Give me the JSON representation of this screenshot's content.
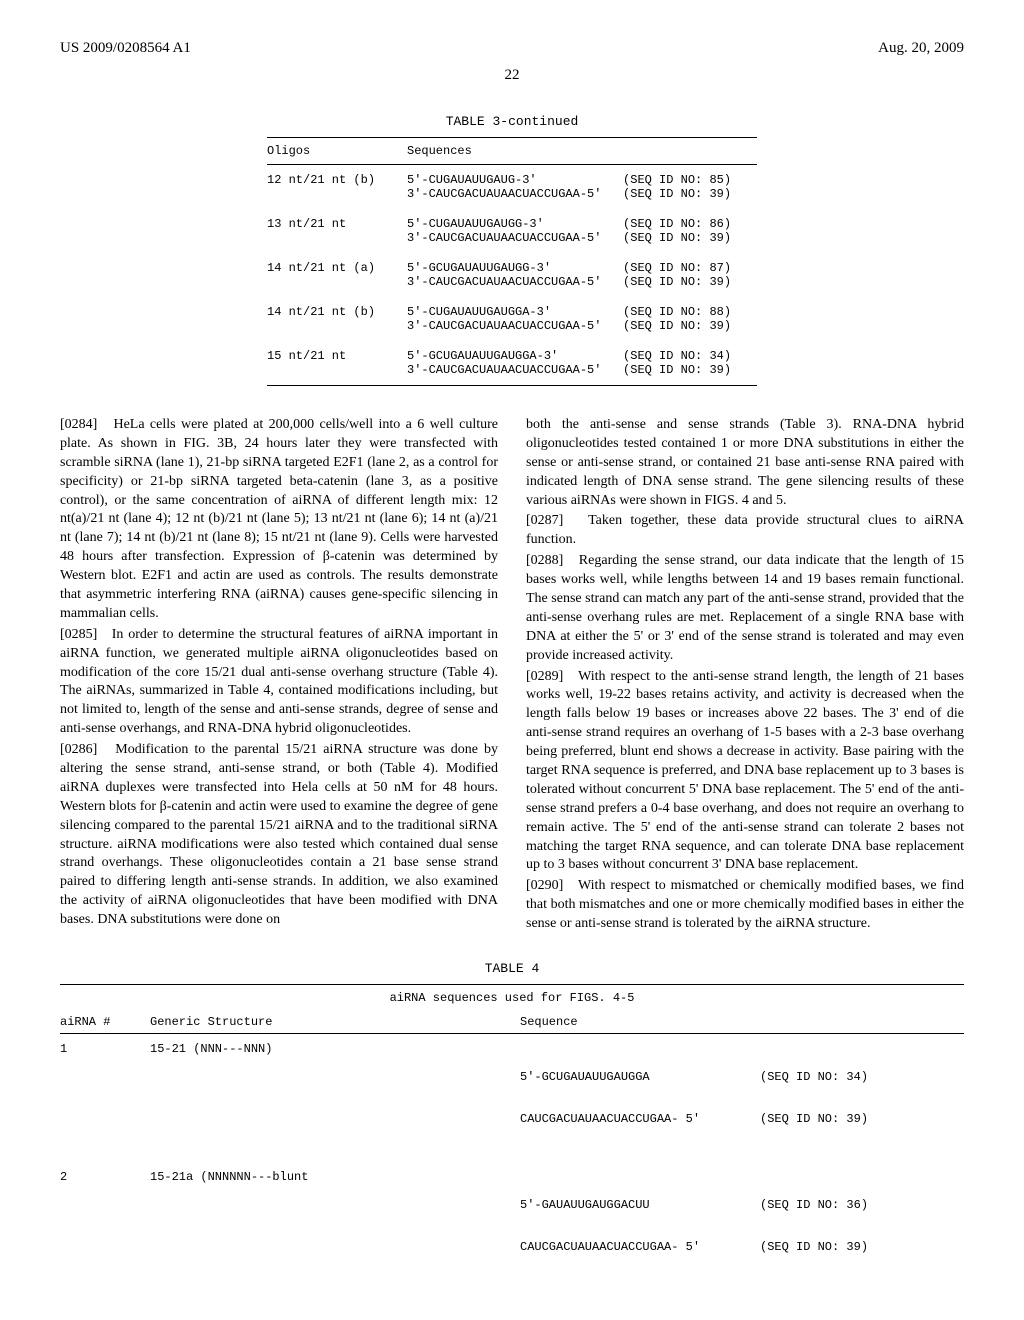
{
  "header": {
    "pub_no": "US 2009/0208564 A1",
    "date": "Aug. 20, 2009",
    "page": "22"
  },
  "table3": {
    "title": "TABLE 3-continued",
    "col_headers": [
      "Oligos",
      "Sequences"
    ],
    "rows": [
      {
        "oligo": "12 nt/21 nt (b)",
        "seq1": "5'-CUGAUAUUGAUG-3'",
        "seqid1": "(SEQ ID NO: 85)",
        "seq2": "3'-CAUCGACUAUAACUACCUGAA-5'",
        "seqid2": "(SEQ ID NO: 39)"
      },
      {
        "oligo": "13 nt/21 nt",
        "seq1": "5'-CUGAUAUUGAUGG-3'",
        "seqid1": "(SEQ ID NO: 86)",
        "seq2": "3'-CAUCGACUAUAACUACCUGAA-5'",
        "seqid2": "(SEQ ID NO: 39)"
      },
      {
        "oligo": "14 nt/21 nt (a)",
        "seq1": "5'-GCUGAUAUUGAUGG-3'",
        "seqid1": "(SEQ ID NO: 87)",
        "seq2": "3'-CAUCGACUAUAACUACCUGAA-5'",
        "seqid2": "(SEQ ID NO: 39)"
      },
      {
        "oligo": "14 nt/21 nt (b)",
        "seq1": "5'-CUGAUAUUGAUGGA-3'",
        "seqid1": "(SEQ ID NO: 88)",
        "seq2": "3'-CAUCGACUAUAACUACCUGAA-5'",
        "seqid2": "(SEQ ID NO: 39)"
      },
      {
        "oligo": "15 nt/21 nt",
        "seq1": "5'-GCUGAUAUUGAUGGA-3'",
        "seqid1": "(SEQ ID NO: 34)",
        "seq2": "3'-CAUCGACUAUAACUACCUGAA-5'",
        "seqid2": "(SEQ ID NO: 39)"
      }
    ]
  },
  "paragraphs": {
    "p0284": "HeLa cells were plated at 200,000 cells/well into a 6 well culture plate. As shown in FIG. 3B, 24 hours later they were transfected with scramble siRNA (lane 1), 21-bp siRNA targeted E2F1 (lane 2, as a control for specificity) or 21-bp siRNA targeted beta-catenin (lane 3, as a positive control), or the same concentration of aiRNA of different length mix: 12 nt(a)/21 nt (lane 4); 12 nt (b)/21 nt (lane 5); 13 nt/21 nt (lane 6); 14 nt (a)/21 nt (lane 7); 14 nt (b)/21 nt (lane 8); 15 nt/21 nt (lane 9). Cells were harvested 48 hours after transfection. Expression of β-catenin was determined by Western blot. E2F1 and actin are used as controls. The results demonstrate that asymmetric interfering RNA (aiRNA) causes gene-specific silencing in mammalian cells.",
    "p0285": "In order to determine the structural features of aiRNA important in aiRNA function, we generated multiple aiRNA oligonucleotides based on modification of the core 15/21 dual anti-sense overhang structure (Table 4). The aiRNAs, summarized in Table 4, contained modifications including, but not limited to, length of the sense and anti-sense strands, degree of sense and anti-sense overhangs, and RNA-DNA hybrid oligonucleotides.",
    "p0286": "Modification to the parental 15/21 aiRNA structure was done by altering the sense strand, anti-sense strand, or both (Table 4). Modified aiRNA duplexes were transfected into Hela cells at 50 nM for 48 hours. Western blots for β-catenin and actin were used to examine the degree of gene silencing compared to the parental 15/21 aiRNA and to the traditional siRNA structure. aiRNA modifications were also tested which contained dual sense strand overhangs. These oligonucleotides contain a 21 base sense strand paired to differing length anti-sense strands. In addition, we also examined the activity of aiRNA oligonucleotides that have been modified with DNA bases. DNA substitutions were done on",
    "p0286b": "both the anti-sense and sense strands (Table 3). RNA-DNA hybrid oligonucleotides tested contained 1 or more DNA substitutions in either the sense or anti-sense strand, or contained 21 base anti-sense RNA paired with indicated length of DNA sense strand. The gene silencing results of these various aiRNAs were shown in FIGS. 4 and 5.",
    "p0287": "Taken together, these data provide structural clues to aiRNA function.",
    "p0288": "Regarding the sense strand, our data indicate that the length of 15 bases works well, while lengths between 14 and 19 bases remain functional. The sense strand can match any part of the anti-sense strand, provided that the anti-sense overhang rules are met. Replacement of a single RNA base with DNA at either the 5' or 3' end of the sense strand is tolerated and may even provide increased activity.",
    "p0289": "With respect to the anti-sense strand length, the length of 21 bases works well, 19-22 bases retains activity, and activity is decreased when the length falls below 19 bases or increases above 22 bases. The 3' end of die anti-sense strand requires an overhang of 1-5 bases with a 2-3 base overhang being preferred, blunt end shows a decrease in activity. Base pairing with the target RNA sequence is preferred, and DNA base replacement up to 3 bases is tolerated without concurrent 5' DNA base replacement. The 5' end of the anti-sense strand prefers a 0-4 base overhang, and does not require an overhang to remain active. The 5' end of the anti-sense strand can tolerate 2 bases not matching the target RNA sequence, and can tolerate DNA base replacement up to 3 bases without concurrent 3' DNA base replacement.",
    "p0290": "With respect to mismatched or chemically modified bases, we find that both mismatches and one or more chemically modified bases in either the sense or anti-sense strand is tolerated by the aiRNA structure."
  },
  "para_nums": {
    "n0284": "[0284]",
    "n0285": "[0285]",
    "n0286": "[0286]",
    "n0287": "[0287]",
    "n0288": "[0288]",
    "n0289": "[0289]",
    "n0290": "[0290]"
  },
  "table4": {
    "title": "TABLE 4",
    "subtitle": "aiRNA sequences used for FIGS. 4-5",
    "headers": [
      "aiRNA #",
      "Generic Structure",
      "Sequence"
    ],
    "rows": [
      {
        "num": "1",
        "struct": "15-21 (NNN---NNN)",
        "seq1": "5'-GCUGAUAUUGAUGGA",
        "seqid1": "(SEQ ID NO: 34)",
        "seq2": "CAUCGACUAUAACUACCUGAA- 5'",
        "seqid2": "(SEQ ID NO: 39)"
      },
      {
        "num": "2",
        "struct": "15-21a (NNNNNN---blunt",
        "seq1": "5'-GAUAUUGAUGGACUU",
        "seqid1": "(SEQ ID NO: 36)",
        "seq2": "CAUCGACUAUAACUACCUGAA- 5'",
        "seqid2": "(SEQ ID NO: 39)"
      }
    ]
  }
}
